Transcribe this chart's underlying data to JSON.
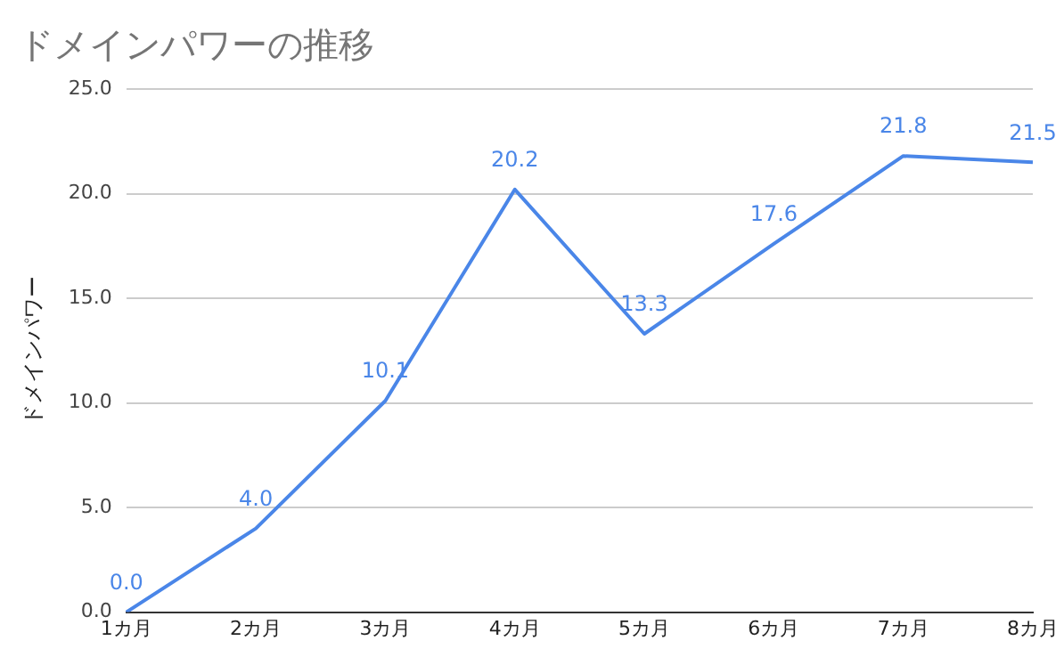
{
  "chart_data": {
    "type": "line",
    "title": "ドメインパワーの推移",
    "ylabel": "ドメインパワー",
    "categories": [
      "1カ月",
      "2カ月",
      "3カ月",
      "4カ月",
      "5カ月",
      "6カ月",
      "7カ月",
      "8カ月"
    ],
    "series": [
      {
        "color": "#4a86e8",
        "values": [
          0.0,
          4.0,
          10.1,
          20.2,
          13.3,
          17.6,
          21.8,
          21.5
        ],
        "value_labels": [
          "0.0",
          "4.0",
          "10.1",
          "20.2",
          "13.3",
          "17.6",
          "21.8",
          "21.5"
        ]
      }
    ],
    "ylim": [
      0,
      25
    ],
    "yticks": [
      {
        "value": 0,
        "label": "0.0"
      },
      {
        "value": 5,
        "label": "5.0"
      },
      {
        "value": 10,
        "label": "10.0"
      },
      {
        "value": 15,
        "label": "15.0"
      },
      {
        "value": 20,
        "label": "20.0"
      },
      {
        "value": 25,
        "label": "25.0"
      }
    ],
    "grid": "y",
    "legend": false,
    "marker": "none",
    "line_style": "solid"
  }
}
